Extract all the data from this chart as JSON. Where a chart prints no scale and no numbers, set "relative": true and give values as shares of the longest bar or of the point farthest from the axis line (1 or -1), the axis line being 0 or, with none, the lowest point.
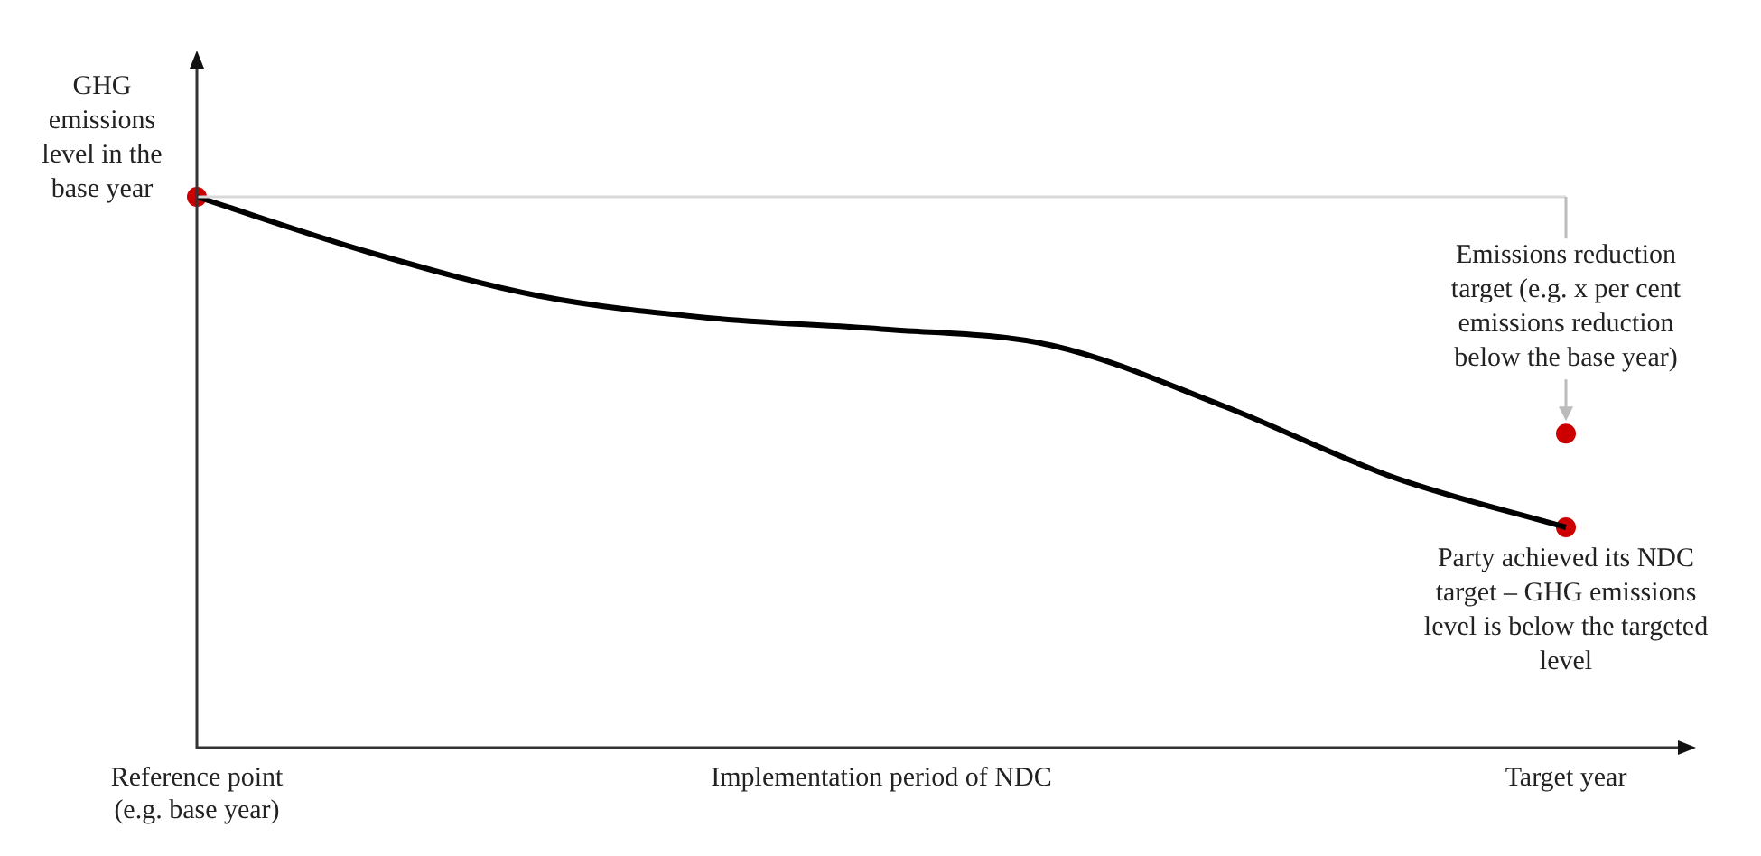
{
  "chart_data": {
    "type": "line",
    "relative": true,
    "categories": [
      "Reference point (e.g. base year)",
      null,
      null,
      null,
      "Implementation period of NDC",
      null,
      null,
      null,
      "Target year"
    ],
    "series": [
      {
        "type": "line",
        "color": "#000000",
        "marker": "none",
        "values": [
          1,
          0.9,
          0.82,
          0.78,
          0.76,
          0.73,
          0.62,
          0.49,
          0.4
        ]
      },
      {
        "type": "scatter",
        "color": "#cc0000",
        "marker": "circle",
        "values": [
          1,
          null,
          null,
          null,
          null,
          null,
          null,
          null,
          0.4
        ]
      },
      {
        "type": "scatter",
        "color": "#cc0000",
        "marker": "circle",
        "values": [
          null,
          null,
          null,
          null,
          null,
          null,
          null,
          null,
          0.57
        ]
      }
    ],
    "ref_lines": [
      {
        "axis": "y",
        "value": 1,
        "color": "#d9d9d9"
      }
    ],
    "annotations": [
      {
        "text": "GHG emissions level in the base year",
        "x": "Reference point (e.g. base year)",
        "y": 1
      },
      {
        "text": "Emissions reduction target (e.g. x per cent emissions reduction below the base year)",
        "x": "Target year",
        "y": 0.57
      },
      {
        "text": "Party achieved its NDC target – GHG emissions level is below the targeted level",
        "x": "Target year",
        "y": 0.4
      }
    ],
    "grid": false,
    "legend": false
  }
}
